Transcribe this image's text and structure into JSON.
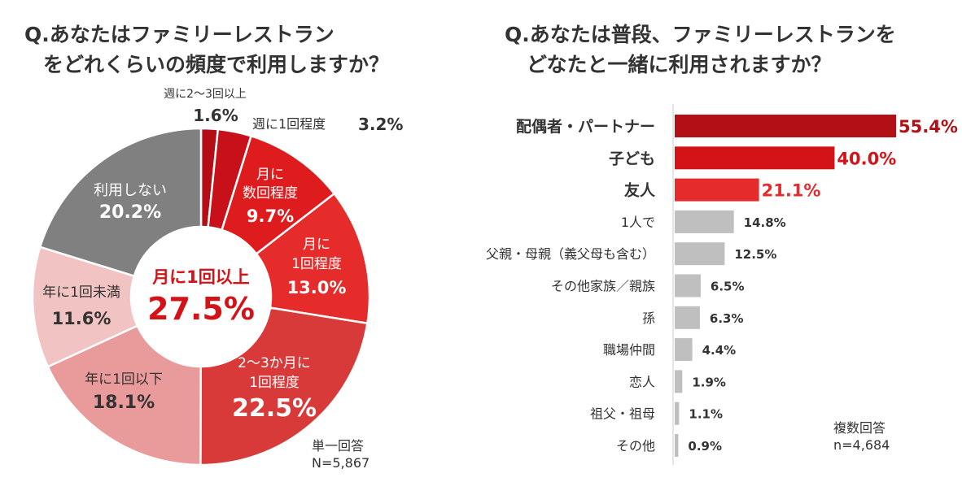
{
  "left": {
    "question_line1": "Q.あなたはファミリーレストラン",
    "question_line2": "をどれくらいの頻度で利用しますか？",
    "center_label": "月に1回以上",
    "center_value": "27.5%",
    "note_line1": "単一回答",
    "note_line2": "N=5,867"
  },
  "right": {
    "question_line1": "Q.あなたは普段、ファミリーレストランを",
    "question_line2": "どなたと一緒に利用されますか？",
    "note_line1": "複数回答",
    "note_line2": "n=4,684"
  },
  "chart_data": [
    {
      "type": "pie",
      "variant": "donut",
      "title": "Q.あなたはファミリーレストランをどれくらいの頻度で利用しますか？",
      "center_text": [
        "月に1回以上",
        "27.5%"
      ],
      "slices": [
        {
          "label": "週に2〜3回以上",
          "value": 1.6,
          "display": "1.6%",
          "color": "#b50d16"
        },
        {
          "label": "週に1回程度",
          "value": 3.2,
          "display": "3.2%",
          "color": "#c8101a"
        },
        {
          "label": "月に数回程度",
          "value": 9.7,
          "display": "9.7%",
          "color": "#de1b1d"
        },
        {
          "label": "月に1回程度",
          "value": 13.0,
          "display": "13.0%",
          "color": "#e62c2b"
        },
        {
          "label": "2〜3か月に1回程度",
          "value": 22.5,
          "display": "22.5%",
          "color": "#d83a3a"
        },
        {
          "label": "年に1回以下",
          "value": 18.1,
          "display": "18.1%",
          "color": "#e99a9a"
        },
        {
          "label": "年に1回未満",
          "value": 11.6,
          "display": "11.6%",
          "color": "#f2c3c3"
        },
        {
          "label": "利用しない",
          "value": 20.2,
          "display": "20.2%",
          "color": "#808080"
        }
      ],
      "note": "単一回答 N=5,867"
    },
    {
      "type": "bar",
      "orientation": "horizontal",
      "title": "Q.あなたは普段、ファミリーレストランをどなたと一緒に利用されますか？",
      "categories": [
        "配偶者・パートナー",
        "子ども",
        "友人",
        "1人で",
        "父親・母親（義父母も含む）",
        "その他家族／親族",
        "孫",
        "職場仲間",
        "恋人",
        "祖父・祖母",
        "その他"
      ],
      "values": [
        55.4,
        40.0,
        21.1,
        14.8,
        12.5,
        6.5,
        6.3,
        4.4,
        1.9,
        1.1,
        0.9
      ],
      "value_labels": [
        "55.4%",
        "40.0%",
        "21.1%",
        "14.8%",
        "12.5%",
        "6.5%",
        "6.3%",
        "4.4%",
        "1.9%",
        "1.1%",
        "0.9%"
      ],
      "highlight_colors": [
        "#b20f17",
        "#d41318",
        "#e52b2b"
      ],
      "default_color": "#bfbfbf",
      "xlim": [
        0,
        55.4
      ],
      "note": "複数回答 n=4,684"
    }
  ]
}
